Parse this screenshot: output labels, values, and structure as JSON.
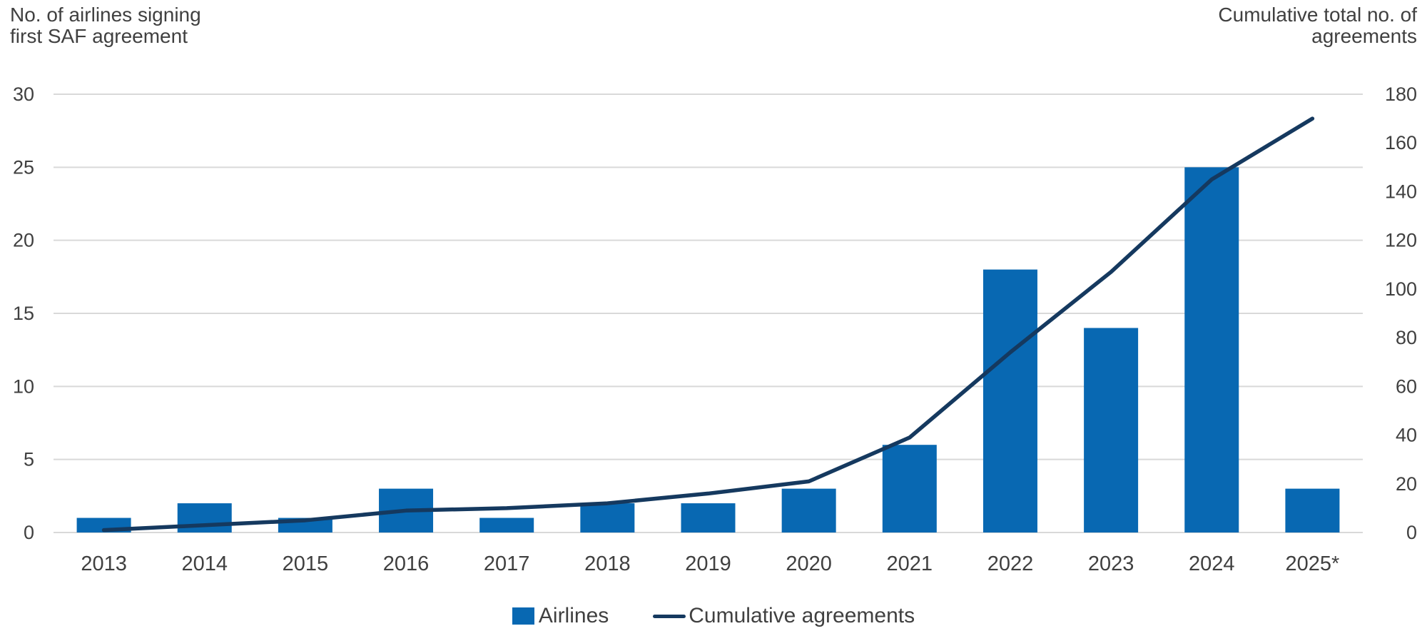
{
  "axis_titles": {
    "left_line1": "No. of airlines signing",
    "left_line2": "first SAF agreement",
    "right_line1": "Cumulative total no. of",
    "right_line2": "agreements"
  },
  "legend": {
    "bar_label": "Airlines",
    "line_label": "Cumulative agreements"
  },
  "colors": {
    "bar": "#0868b2",
    "line": "#15395f",
    "grid": "#d9d9d9",
    "text": "#404040"
  },
  "chart_data": {
    "type": "bar",
    "subtype": "bar+line combo, dual axis",
    "categories": [
      "2013",
      "2014",
      "2015",
      "2016",
      "2017",
      "2018",
      "2019",
      "2020",
      "2021",
      "2022",
      "2023",
      "2024",
      "2025*"
    ],
    "series": [
      {
        "name": "Airlines",
        "type": "bar",
        "axis": "left",
        "values": [
          1,
          2,
          1,
          3,
          1,
          2,
          2,
          3,
          6,
          18,
          14,
          25,
          3
        ]
      },
      {
        "name": "Cumulative agreements",
        "type": "line",
        "axis": "right",
        "values": [
          1,
          3,
          5,
          9,
          10,
          12,
          16,
          21,
          39,
          74,
          107,
          145,
          170
        ]
      }
    ],
    "title": "",
    "xlabel": "",
    "left_axis": {
      "label": "No. of airlines signing first SAF agreement",
      "ticks": [
        0,
        5,
        10,
        15,
        20,
        25,
        30
      ],
      "min": 0,
      "max": 30
    },
    "right_axis": {
      "label": "Cumulative total no. of agreements",
      "ticks": [
        0,
        20,
        40,
        60,
        80,
        100,
        120,
        140,
        160,
        180
      ],
      "min": 0,
      "max": 180
    },
    "grid": "horizontal gridlines on",
    "legend_position": "bottom center"
  }
}
